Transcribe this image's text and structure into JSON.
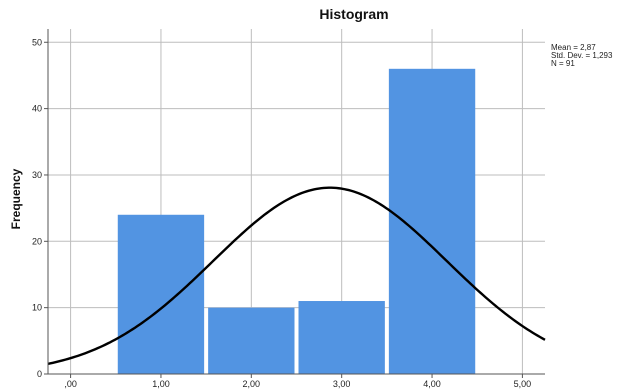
{
  "chart_data": {
    "type": "bar",
    "title": "Histogram",
    "xlabel": "",
    "ylabel": "Frequency",
    "xlim": [
      -0.25,
      5.25
    ],
    "ylim": [
      0,
      52
    ],
    "x_ticks": [
      0,
      1,
      2,
      3,
      4,
      5
    ],
    "x_tick_labels": [
      ",00",
      "1,00",
      "2,00",
      "3,00",
      "4,00",
      "5,00"
    ],
    "y_ticks": [
      0,
      10,
      20,
      30,
      40,
      50
    ],
    "y_tick_labels": [
      "0",
      "10",
      "20",
      "30",
      "40",
      "50"
    ],
    "grid": true,
    "bins": [
      {
        "from": 0.5,
        "to": 1.5,
        "value": 24
      },
      {
        "from": 1.5,
        "to": 2.5,
        "value": 10
      },
      {
        "from": 2.5,
        "to": 3.5,
        "value": 11
      },
      {
        "from": 3.5,
        "to": 4.5,
        "value": 46
      }
    ],
    "normal_curve": {
      "mean": 2.87,
      "std": 1.293,
      "n": 91,
      "bin_width": 1
    },
    "bar_color": "#5294e2",
    "curve_color": "#000000",
    "stats": [
      "Mean = 2,87",
      "Std. Dev. = 1,293",
      "N = 91"
    ]
  }
}
